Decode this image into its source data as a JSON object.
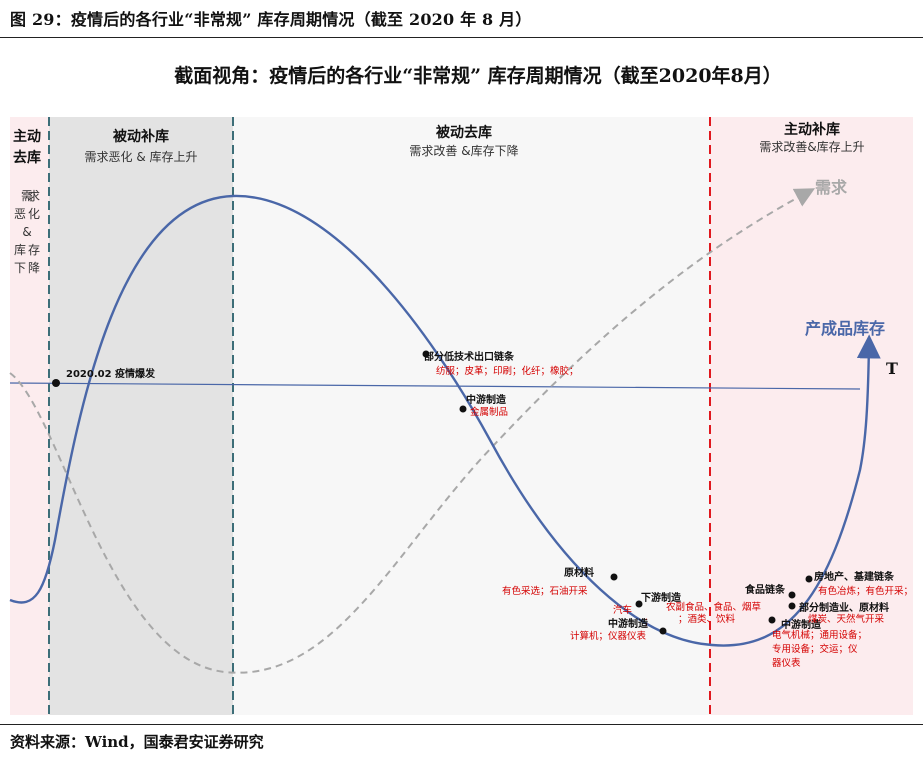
{
  "figure": {
    "title": "图 29：疫情后的各行业“非常规” 库存周期情况（截至 2020 年 8 月）",
    "source": "资料来源：Wind，国泰君安证券研究"
  },
  "diagram": {
    "title": "截面视角：疫情后的各行业“非常规” 库存周期情况（截至2020年8月）",
    "zones": [
      {
        "title_lines": [
          "主动",
          "去库"
        ],
        "sub_lines": [
          "需",
          "求",
          "恶",
          "化",
          "&",
          "库",
          "存",
          "下",
          "降"
        ]
      },
      {
        "title": "被动补库",
        "sub": "需求恶化 & 库存上升"
      },
      {
        "title": "被动去库",
        "sub": "需求改善 &库存下降"
      },
      {
        "title": "主动补库",
        "sub": "需求改善&库存上升"
      }
    ],
    "curves": {
      "demand": "需求",
      "inventory": "产成品库存",
      "time_axis": "T"
    },
    "event": "2020.02  疫情爆发",
    "annotations": [
      {
        "name": "部分低技术出口链条",
        "detail": "纺服；皮革；印刷；化纤；橡胶；"
      },
      {
        "name": "中游制造",
        "detail": "金属制品"
      },
      {
        "name": "原材料",
        "detail": "有色采选；石油开采"
      },
      {
        "name": "下游制造",
        "detail_lines": [
          "汽车",
          "；"
        ]
      },
      {
        "name": "农副食品、食品、烟草",
        "detail": "；酒类、饮料"
      },
      {
        "name": "中游制造",
        "detail": "计算机；仪器仪表"
      },
      {
        "name": "食品链条",
        "detail": ""
      },
      {
        "name": "房地产、基建链条",
        "detail": "有色冶炼；有色开采；"
      },
      {
        "name": "部分制造业、原材料",
        "detail": "电气机械；通用设备；"
      },
      {
        "name": "中游制造",
        "detail_lines": [
          "专用设备；交运；仪",
          "器仪表"
        ]
      },
      {
        "name": "",
        "detail": "煤炭、天然气开采"
      }
    ]
  },
  "colors": {
    "inventory_curve": "#4a67a8",
    "demand_curve": "#a8a8a8",
    "zone1_bg": "#fcecee",
    "zone2_bg": "#e3e3e3",
    "zone3_bg": "#f7f7f7",
    "zone4_bg": "#fcecee",
    "teal_divider": "#3d6e78",
    "red_divider": "#e0181e",
    "label_red": "#d40000"
  }
}
